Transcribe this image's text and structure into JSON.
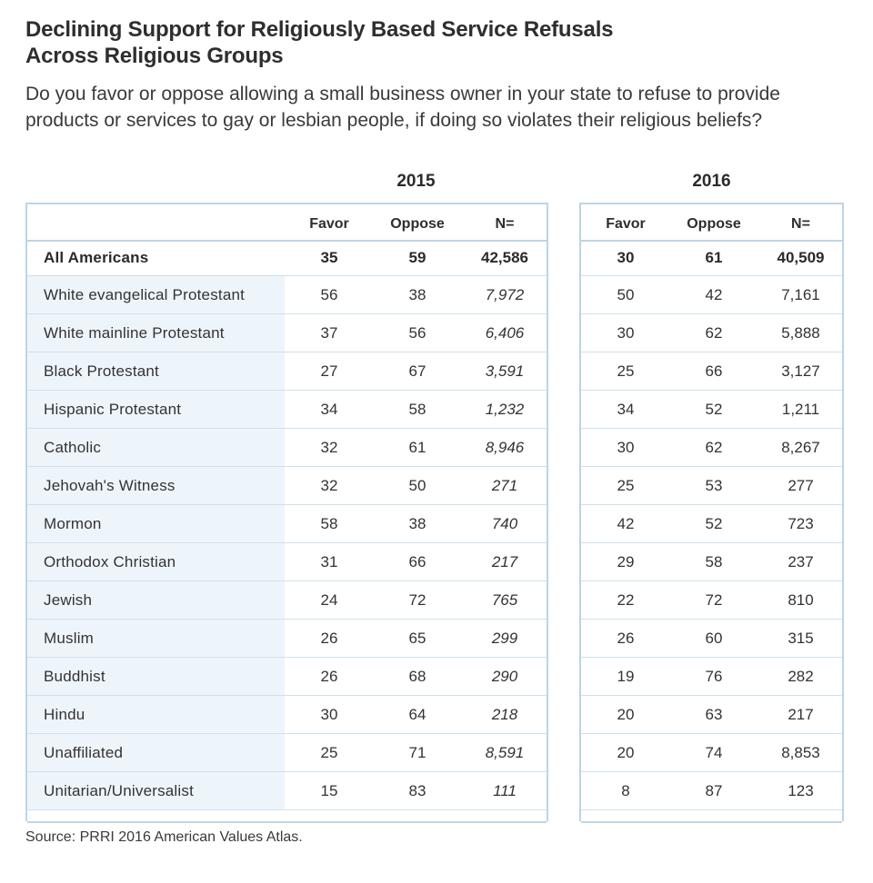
{
  "title_lines": [
    "Declining Support for Religiously Based Service Refusals",
    "Across Religious Groups"
  ],
  "subtitle": "Do you favor or oppose allowing a small business owner in your state to refuse to provide products or services to gay or lesbian people, if doing so violates their religious beliefs?",
  "source": "Source: PRRI 2016 American Values Atlas.",
  "colors": {
    "border": "#bcd5e6",
    "row_rule": "#cfe0ec",
    "label_shade": "#eef5fa",
    "text": "#333333"
  },
  "chart_data": {
    "type": "table",
    "title": "Declining Support for Religiously Based Service Refusals Across Religious Groups",
    "subtitle": "Do you favor or oppose allowing a small business owner in your state to refuse to provide products or services to gay or lesbian people, if doing so violates their religious beliefs?",
    "years": [
      "2015",
      "2016"
    ],
    "columns": [
      "Favor",
      "Oppose",
      "N="
    ],
    "rows": [
      {
        "group": "All Americans",
        "y2015": [
          "35",
          "59",
          "42,586"
        ],
        "y2016": [
          "30",
          "61",
          "40,509"
        ]
      },
      {
        "group": "White evangelical Protestant",
        "y2015": [
          "56",
          "38",
          "7,972"
        ],
        "y2016": [
          "50",
          "42",
          "7,161"
        ]
      },
      {
        "group": "White mainline Protestant",
        "y2015": [
          "37",
          "56",
          "6,406"
        ],
        "y2016": [
          "30",
          "62",
          "5,888"
        ]
      },
      {
        "group": "Black Protestant",
        "y2015": [
          "27",
          "67",
          "3,591"
        ],
        "y2016": [
          "25",
          "66",
          "3,127"
        ]
      },
      {
        "group": "Hispanic Protestant",
        "y2015": [
          "34",
          "58",
          "1,232"
        ],
        "y2016": [
          "34",
          "52",
          "1,211"
        ]
      },
      {
        "group": "Catholic",
        "y2015": [
          "32",
          "61",
          "8,946"
        ],
        "y2016": [
          "30",
          "62",
          "8,267"
        ]
      },
      {
        "group": "Jehovah's Witness",
        "y2015": [
          "32",
          "50",
          "271"
        ],
        "y2016": [
          "25",
          "53",
          "277"
        ]
      },
      {
        "group": "Mormon",
        "y2015": [
          "58",
          "38",
          "740"
        ],
        "y2016": [
          "42",
          "52",
          "723"
        ]
      },
      {
        "group": "Orthodox Christian",
        "y2015": [
          "31",
          "66",
          "217"
        ],
        "y2016": [
          "29",
          "58",
          "237"
        ]
      },
      {
        "group": "Jewish",
        "y2015": [
          "24",
          "72",
          "765"
        ],
        "y2016": [
          "22",
          "72",
          "810"
        ]
      },
      {
        "group": "Muslim",
        "y2015": [
          "26",
          "65",
          "299"
        ],
        "y2016": [
          "26",
          "60",
          "315"
        ]
      },
      {
        "group": "Buddhist",
        "y2015": [
          "26",
          "68",
          "290"
        ],
        "y2016": [
          "19",
          "76",
          "282"
        ]
      },
      {
        "group": "Hindu",
        "y2015": [
          "30",
          "64",
          "218"
        ],
        "y2016": [
          "20",
          "63",
          "217"
        ]
      },
      {
        "group": "Unaffiliated",
        "y2015": [
          "25",
          "71",
          "8,591"
        ],
        "y2016": [
          "20",
          "74",
          "8,853"
        ]
      },
      {
        "group": "Unitarian/Universalist",
        "y2015": [
          "15",
          "83",
          "111"
        ],
        "y2016": [
          "8",
          "87",
          "123"
        ]
      }
    ]
  }
}
